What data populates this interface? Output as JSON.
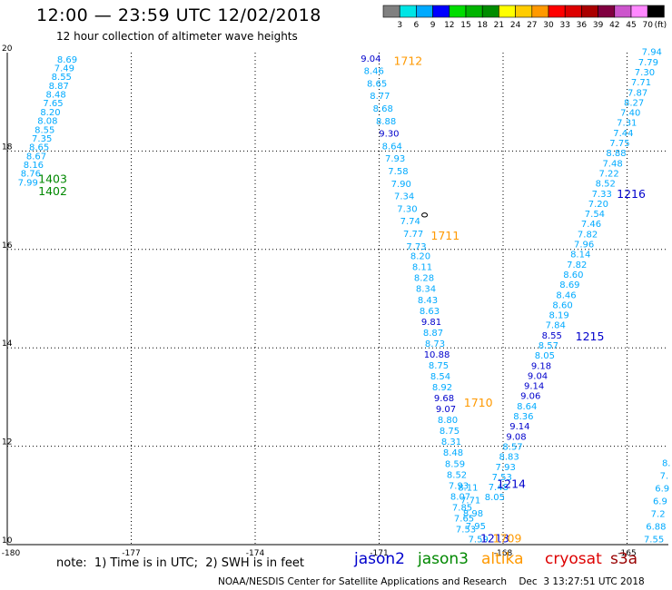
{
  "header": {
    "title": "12:00 — 23:59 UTC 12/02/2018",
    "subtitle": "12 hour collection of altimeter wave heights"
  },
  "colorbar": {
    "unit_label": "(ft)",
    "ticks": [
      "3",
      "6",
      "9",
      "12",
      "15",
      "18",
      "21",
      "24",
      "27",
      "30",
      "33",
      "36",
      "39",
      "42",
      "45",
      "70"
    ],
    "colors": [
      "#808080",
      "#00e5e5",
      "#00aaff",
      "#0000ff",
      "#00dd00",
      "#00b400",
      "#008c00",
      "#ffff00",
      "#ffcc00",
      "#ff9900",
      "#ff0000",
      "#dd0000",
      "#aa0000",
      "#800040",
      "#cc55cc",
      "#ff88ff",
      "#000000"
    ]
  },
  "footer": {
    "note": "note:  1) Time is in UTC;  2) SWH is in feet",
    "legend": [
      {
        "label": "jason2",
        "color": "#0000cc"
      },
      {
        "label": "jason3",
        "color": "#008800"
      },
      {
        "label": "altika",
        "color": "#ff9900"
      },
      {
        "label": "cryosat",
        "color": "#dd0000"
      },
      {
        "label": "s3a",
        "color": "#990000"
      }
    ],
    "credit": "NOAA/NESDIS Center for Satellite Applications and Research    Dec  3 13:27:51 UTC 2018"
  },
  "chart_data": {
    "type": "scatter",
    "title": "12:00 — 23:59 UTC 12/02/2018",
    "subtitle": "12 hour collection of altimeter wave heights",
    "xlabel": "",
    "ylabel": "",
    "xlim": [
      -180,
      -164
    ],
    "ylim": [
      10,
      20
    ],
    "x_ticks": [
      "-180",
      "-177",
      "-174",
      "-171",
      "-168",
      "-165"
    ],
    "y_ticks": [
      "10",
      "12",
      "14",
      "16",
      "18",
      "20"
    ],
    "x_tick_values": [
      -180,
      -177,
      -174,
      -171,
      -168,
      -165
    ],
    "y_tick_values": [
      10,
      12,
      14,
      16,
      18,
      20
    ],
    "grid": true,
    "colors": {
      "light": "#00aaff",
      "dark": "#0000cc",
      "j3": "#008800",
      "alt": "#ff9900"
    },
    "tracks": [
      {
        "name": "jason3_upper_left",
        "color": "light",
        "lon": [
          -178.55,
          -179.5
        ],
        "lat": [
          19.8,
          17.3
        ],
        "values": [
          "8.69",
          "7.49",
          "8.55",
          "8.87",
          "8.48",
          "7.65",
          "8.20",
          "8.08",
          "8.55",
          "7.35",
          "8.65",
          "8.67",
          "8.16",
          "8.76",
          "7.99"
        ]
      },
      {
        "name": "altika_descending_top",
        "color": "light",
        "lon": [
          -171.2,
          -170.1
        ],
        "lat": [
          19.82,
          16.0
        ],
        "values": [
          "9.04",
          "8.46",
          "8.65",
          "8.77",
          "8.68",
          "8.88",
          "9.30",
          "8.64",
          "7.93",
          "7.58",
          "7.90",
          "7.34",
          "7.30",
          "7.74",
          "7.77",
          "7.73"
        ],
        "dark": [
          0,
          6
        ]
      },
      {
        "name": "altika_descending_mid",
        "color": "light",
        "lon": [
          -170.0,
          -168.9
        ],
        "lat": [
          15.8,
          10.25
        ],
        "values": [
          "8.20",
          "8.11",
          "8.28",
          "8.34",
          "8.43",
          "8.63",
          "9.81",
          "8.87",
          "8.73",
          "10.88",
          "8.75",
          "8.54",
          "8.92",
          "9.68",
          "9.07",
          "8.80",
          "8.75",
          "8.31",
          "8.48",
          "8.59",
          "8.52",
          "7.93",
          "8.07",
          "7.85",
          "7.65",
          "7.53"
        ],
        "dark": [
          6,
          9,
          13,
          14
        ]
      },
      {
        "name": "jason2_ascending",
        "color": "light",
        "lon": [
          -168.2,
          -164.4
        ],
        "lat": [
          10.9,
          19.95
        ],
        "values": [
          "8.05",
          "7.48",
          "7.53",
          "7.93",
          "8.83",
          "8.57",
          "9.08",
          "9.14",
          "8.36",
          "8.64",
          "9.06",
          "9.14",
          "9.04",
          "9.18",
          "8.05",
          "8.57",
          "8.55",
          "7.84",
          "8.19",
          "8.60",
          "8.46",
          "8.69",
          "8.60",
          "7.82",
          "8.14",
          "7.96",
          "7.82",
          "7.46",
          "7.54",
          "7.20",
          "7.33",
          "8.52",
          "7.22",
          "7.48",
          "8.88",
          "7.75",
          "7.44",
          "7.31",
          "7.40",
          "8.27",
          "7.87",
          "7.71",
          "7.30",
          "7.79",
          "7.94"
        ],
        "dark": [
          6,
          7,
          10,
          11,
          12,
          13,
          16
        ]
      },
      {
        "name": "jason2_right_edge",
        "color": "light",
        "lon": [
          -164.05,
          -164.35
        ],
        "lat": [
          11.6,
          10.05
        ],
        "values": [
          "8.",
          "7.",
          "6.9",
          "6.9",
          "7.2",
          "6.88",
          "7.55"
        ]
      },
      {
        "name": "small_cluster",
        "color": "light",
        "lon": [
          -168.85,
          -168.6
        ],
        "lat": [
          11.1,
          10.05
        ],
        "values": [
          "8.11",
          "7.71",
          "8.98",
          "7.95",
          "7.59"
        ]
      }
    ],
    "annotations": [
      {
        "text": "1712",
        "color": "alt",
        "lon": -170.3,
        "lat": 19.75
      },
      {
        "text": "1711",
        "color": "alt",
        "lon": -169.4,
        "lat": 16.2
      },
      {
        "text": "1710",
        "color": "alt",
        "lon": -168.6,
        "lat": 12.8
      },
      {
        "text": "1403",
        "color": "j3",
        "lon": -178.9,
        "lat": 17.35
      },
      {
        "text": "1402",
        "color": "j3",
        "lon": -178.9,
        "lat": 17.1
      },
      {
        "text": "1216",
        "color": "dark",
        "lon": -164.9,
        "lat": 17.05
      },
      {
        "text": "1215",
        "color": "dark",
        "lon": -165.9,
        "lat": 14.15
      },
      {
        "text": "1214",
        "color": "dark",
        "lon": -167.8,
        "lat": 11.15
      },
      {
        "text": "1213",
        "color": "dark",
        "lon": -168.2,
        "lat": 10.05
      },
      {
        "text": "1709",
        "color": "alt",
        "lon": -167.9,
        "lat": 10.05
      }
    ]
  }
}
